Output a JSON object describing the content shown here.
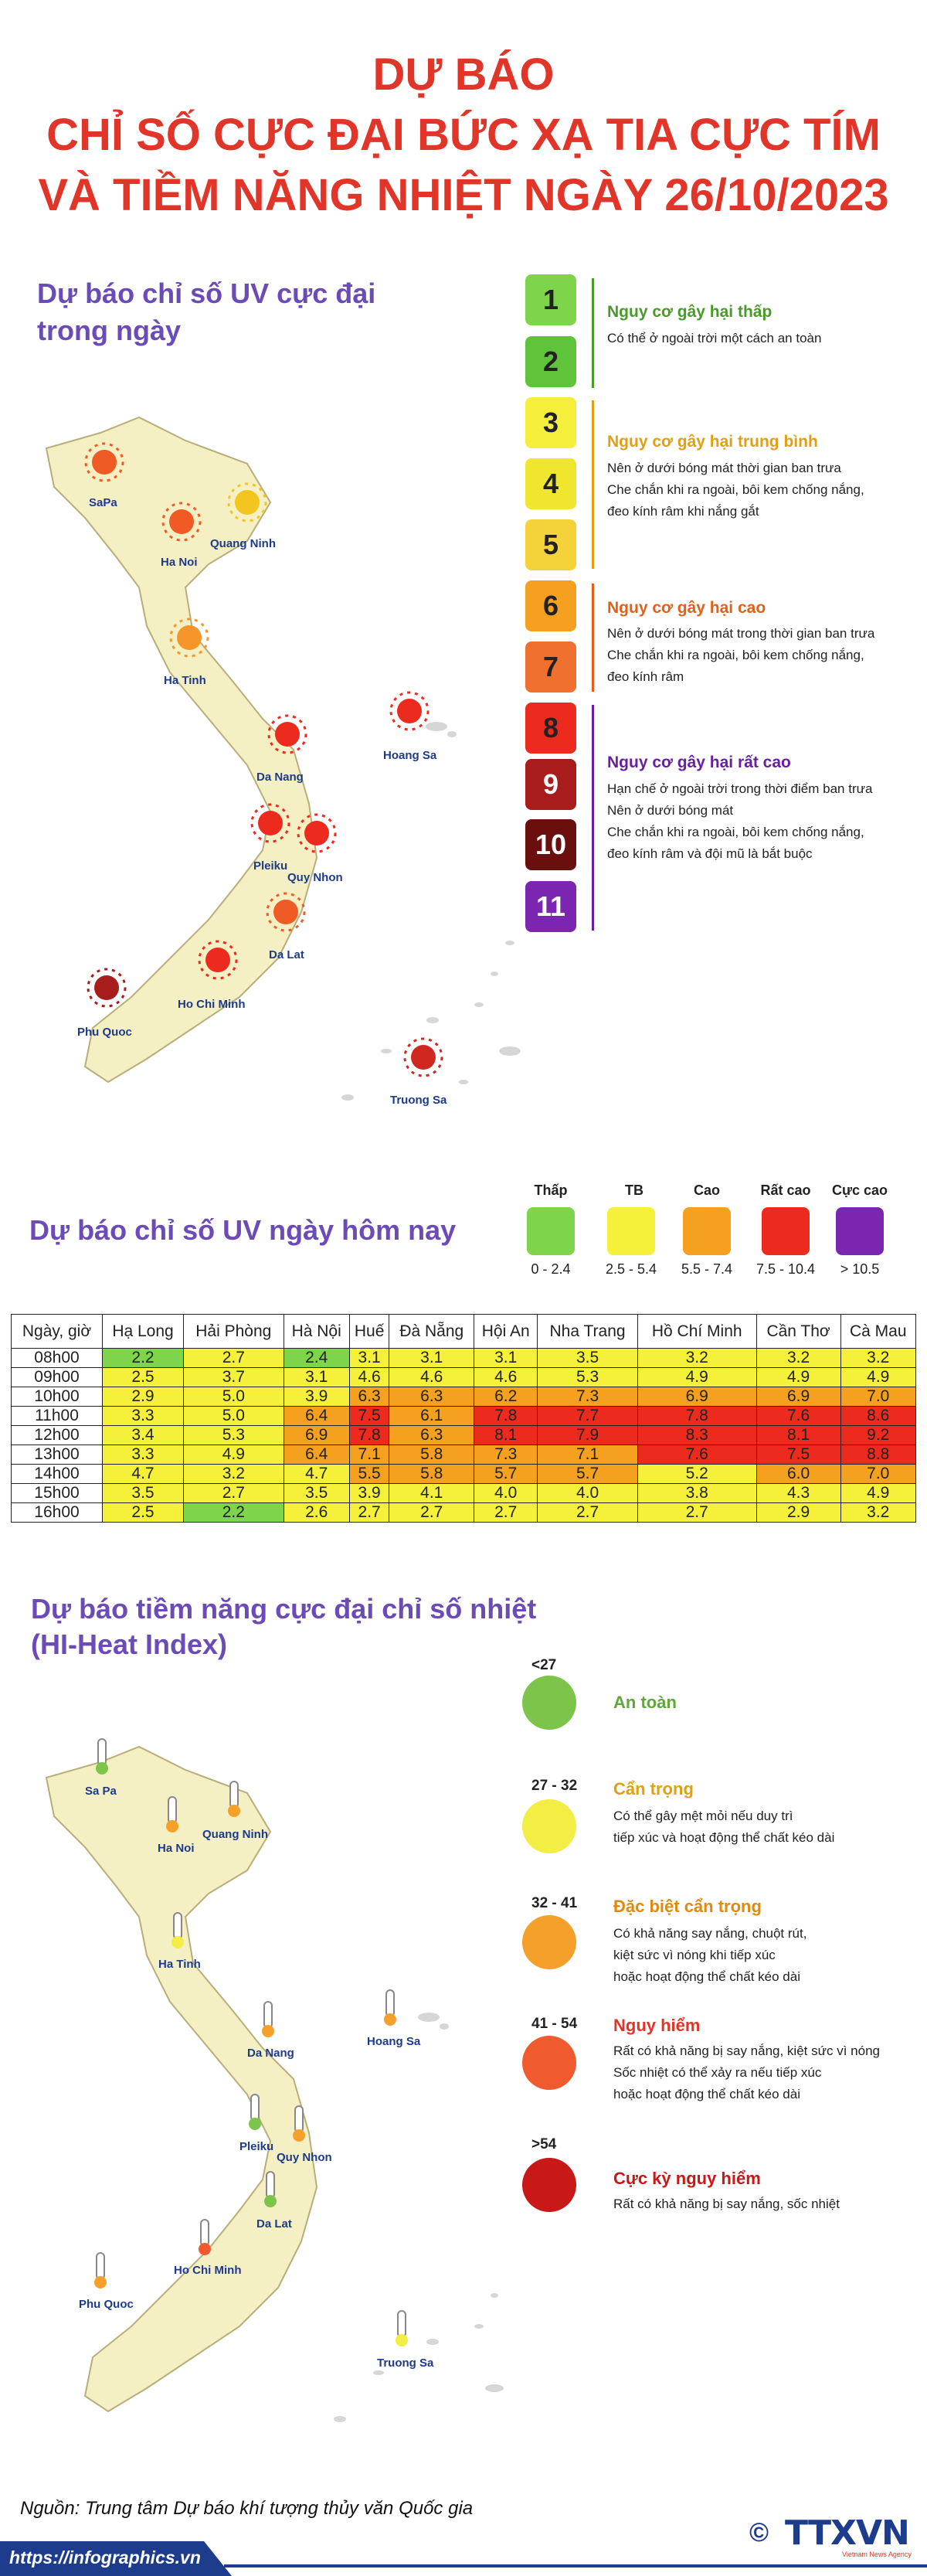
{
  "title": {
    "line1": "DỰ BÁO",
    "line2": "CHỈ SỐ CỰC ĐẠI BỨC XẠ TIA CỰC TÍM",
    "line3": "VÀ TIỀM NĂNG NHIỆT NGÀY 26/10/2023"
  },
  "uv_max": {
    "title_line1": "Dự báo chỉ số UV cực đại",
    "title_line2": "trong ngày",
    "cities": [
      "SaPa",
      "Ha Noi",
      "Quang Ninh",
      "Ha Tinh",
      "Hoang Sa",
      "Da Nang",
      "Pleiku",
      "Quy Nhon",
      "Da Lat",
      "Ho Chi Minh",
      "Phu Quoc",
      "Truong Sa"
    ],
    "scale": [
      {
        "level": "1",
        "color": "#7ed44b"
      },
      {
        "level": "2",
        "color": "#5fc43a"
      },
      {
        "level": "3",
        "color": "#f5ee3b"
      },
      {
        "level": "4",
        "color": "#f1e62e"
      },
      {
        "level": "5",
        "color": "#f4d23a"
      },
      {
        "level": "6",
        "color": "#f6a020"
      },
      {
        "level": "7",
        "color": "#f07030"
      },
      {
        "level": "8",
        "color": "#ec2a1e"
      },
      {
        "level": "9",
        "color": "#a81c1c"
      },
      {
        "level": "10",
        "color": "#6b0e0e"
      },
      {
        "level": "11",
        "color": "#7b26b0"
      }
    ],
    "groups": [
      {
        "title": "Nguy cơ gây hại thấp",
        "color": "#4a9a2a",
        "lines": [
          "Có thể ở ngoài trời một cách an toàn"
        ]
      },
      {
        "title": "Nguy cơ gây hại trung bình",
        "color": "#e0a010",
        "lines": [
          "Nên ở dưới bóng mát thời gian ban trưa",
          "Che chắn khi ra ngoài, bôi kem chống nắng,",
          "đeo kính râm khi nắng gắt"
        ]
      },
      {
        "title": "Nguy cơ gây hại cao",
        "color": "#e26018",
        "lines": [
          "Nên ở dưới bóng mát trong thời gian ban trưa",
          "Che chắn khi ra ngoài, bôi kem chống nắng,",
          "đeo kính râm"
        ]
      },
      {
        "title": "Nguy cơ gây hại rất cao",
        "color": "#6a1fa0",
        "lines": [
          "Hạn chế ở ngoài trời trong thời điểm ban trưa",
          "Nên ở dưới bóng mát",
          "Che chắn khi ra ngoài, bôi kem chống nắng,",
          "đeo kính râm và đội mũ là bắt buộc"
        ]
      }
    ]
  },
  "uv_today": {
    "title": "Dự báo chỉ số UV ngày hôm nay",
    "legend": [
      {
        "label": "Thấp",
        "range": "0 - 2.4",
        "color": "#7ed44b"
      },
      {
        "label": "TB",
        "range": "2.5 - 5.4",
        "color": "#f5f03a"
      },
      {
        "label": "Cao",
        "range": "5.5 - 7.4",
        "color": "#f6a020"
      },
      {
        "label": "Rất cao",
        "range": "7.5 - 10.4",
        "color": "#ec2a1e"
      },
      {
        "label": "Cực cao",
        "range": "> 10.5",
        "color": "#7b26b0"
      }
    ],
    "header_time": "Ngày, giờ",
    "columns": [
      "Hạ Long",
      "Hải Phòng",
      "Hà Nội",
      "Huế",
      "Đà Nẵng",
      "Hội An",
      "Nha Trang",
      "Hồ Chí Minh",
      "Cần Thơ",
      "Cà Mau"
    ],
    "rows": [
      {
        "time": "08h00",
        "values": [
          "2.2",
          "2.7",
          "2.4",
          "3.1",
          "3.1",
          "3.1",
          "3.5",
          "3.2",
          "3.2",
          "3.2"
        ]
      },
      {
        "time": "09h00",
        "values": [
          "2.5",
          "3.7",
          "3.1",
          "4.6",
          "4.6",
          "4.6",
          "5.3",
          "4.9",
          "4.9",
          "4.9"
        ]
      },
      {
        "time": "10h00",
        "values": [
          "2.9",
          "5.0",
          "3.9",
          "6.3",
          "6.3",
          "6.2",
          "7.3",
          "6.9",
          "6.9",
          "7.0"
        ]
      },
      {
        "time": "11h00",
        "values": [
          "3.3",
          "5.0",
          "6.4",
          "7.5",
          "6.1",
          "7.8",
          "7.7",
          "7.8",
          "7.6",
          "8.6"
        ]
      },
      {
        "time": "12h00",
        "values": [
          "3.4",
          "5.3",
          "6.9",
          "7.8",
          "6.3",
          "8.1",
          "7.9",
          "8.3",
          "8.1",
          "9.2"
        ]
      },
      {
        "time": "13h00",
        "values": [
          "3.3",
          "4.9",
          "6.4",
          "7.1",
          "5.8",
          "7.3",
          "7.1",
          "7.6",
          "7.5",
          "8.8"
        ]
      },
      {
        "time": "14h00",
        "values": [
          "4.7",
          "3.2",
          "4.7",
          "5.5",
          "5.8",
          "5.7",
          "5.7",
          "5.2",
          "6.0",
          "7.0"
        ]
      },
      {
        "time": "15h00",
        "values": [
          "3.5",
          "2.7",
          "3.5",
          "3.9",
          "4.1",
          "4.0",
          "4.0",
          "3.8",
          "4.3",
          "4.9"
        ]
      },
      {
        "time": "16h00",
        "values": [
          "2.5",
          "2.2",
          "2.6",
          "2.7",
          "2.7",
          "2.7",
          "2.7",
          "2.7",
          "2.9",
          "3.2"
        ]
      }
    ]
  },
  "heat_index": {
    "title_line1": "Dự báo tiềm năng cực đại chỉ số nhiệt",
    "title_line2": "(HI-Heat Index)",
    "cities": [
      "Sa Pa",
      "Ha Noi",
      "Quang Ninh",
      "Ha Tinh",
      "Hoang Sa",
      "Da Nang",
      "Pleiku",
      "Quy Nhon",
      "Da Lat",
      "Ho Chi Minh",
      "Phu Quoc",
      "Truong Sa"
    ],
    "levels": [
      {
        "range": "<27",
        "title": "An toàn",
        "color": "#7cc44a",
        "title_color": "#5da838",
        "lines": []
      },
      {
        "range": "27 - 32",
        "title": "Cẩn trọng",
        "color": "#f2ee44",
        "title_color": "#e0a010",
        "lines": [
          "Có thể gây mệt mỏi nếu duy trì",
          "tiếp xúc và hoạt động thể chất kéo dài"
        ]
      },
      {
        "range": "32 - 41",
        "title": "Đặc biệt cẩn trọng",
        "color": "#f5a02a",
        "title_color": "#e08a10",
        "lines": [
          "Có khả năng say nắng, chuột rút,",
          "kiệt sức vì nóng khi tiếp xúc",
          "hoặc hoạt động thể chất kéo dài"
        ]
      },
      {
        "range": "41 - 54",
        "title": "Nguy hiểm",
        "color": "#f05a2e",
        "title_color": "#e2352a",
        "lines": [
          "Rất có khả năng bị say nắng, kiệt sức vì nóng",
          "Sốc nhiệt có thể xảy ra nếu tiếp xúc",
          "hoặc hoạt động thể chất kéo dài"
        ]
      },
      {
        "range": ">54",
        "title": "Cực kỳ nguy hiểm",
        "color": "#c81818",
        "title_color": "#c81818",
        "lines": [
          "Rất có khả năng bị say nắng, sốc nhiệt"
        ]
      }
    ]
  },
  "footer": {
    "source": "Nguồn: Trung tâm Dự báo khí tượng thủy văn Quốc gia",
    "url": "https://infographics.vn",
    "copyright": "©",
    "logo_text": "TTXVN",
    "logo_sub": "Vietnam News Agency"
  }
}
